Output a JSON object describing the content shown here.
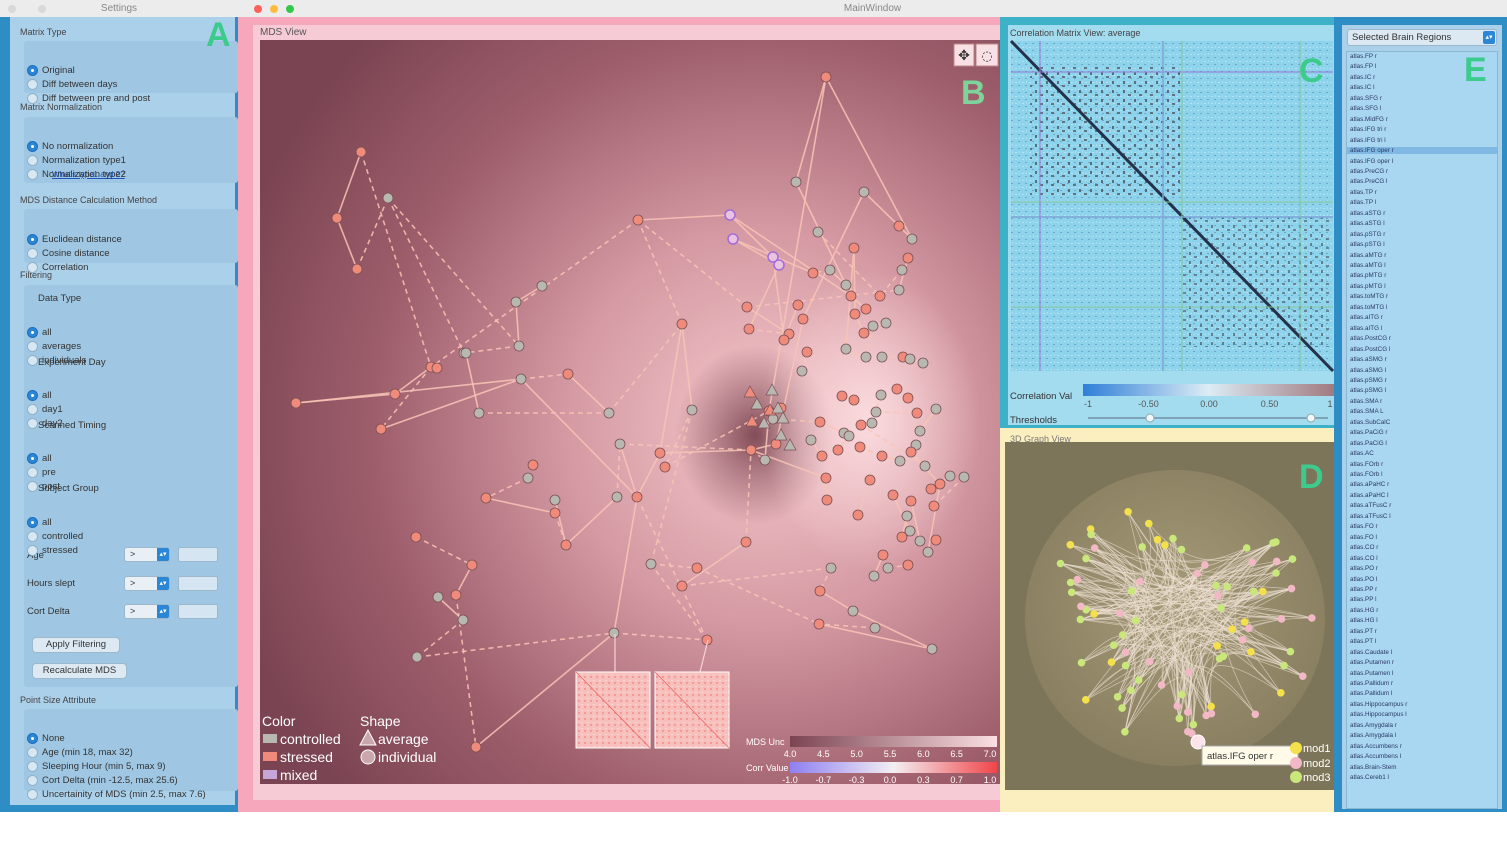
{
  "windows": {
    "settings_title": "Settings",
    "main_title": "MainWindow"
  },
  "panel_letters": {
    "a": "A",
    "b": "B",
    "c": "C",
    "d": "D",
    "e": "E"
  },
  "settings": {
    "matrix_type": {
      "header": "Matrix Type",
      "options": [
        "Original",
        "Diff between days",
        "Diff between pre and post"
      ],
      "selected": 0
    },
    "normalization": {
      "header": "Matrix Normalization",
      "options": [
        "No normalization",
        "Normalization type1",
        "Normalization type2"
      ],
      "selected": 0,
      "link": "What's type1 and 2?"
    },
    "distance": {
      "header": "MDS Distance Calculation Method",
      "options": [
        "Euclidean distance",
        "Cosine distance",
        "Correlation"
      ],
      "selected": 0
    },
    "filtering": {
      "header": "Filtering",
      "data_type": {
        "label": "Data Type",
        "options": [
          "all",
          "averages",
          "individuals"
        ],
        "selected": 0
      },
      "experiment_day": {
        "label": "Experiment Day",
        "options": [
          "all",
          "day1",
          "day2"
        ],
        "selected": 0
      },
      "scanned_timing": {
        "label": "Scanned Timing",
        "options": [
          "all",
          "pre",
          "post"
        ],
        "selected": 0
      },
      "subject_group": {
        "label": "Subject Group",
        "options": [
          "all",
          "controlled",
          "stressed"
        ],
        "selected": 0
      },
      "age": {
        "label": "Age",
        "operator": ">",
        "value": ""
      },
      "hours_slept": {
        "label": "Hours slept",
        "operator": ">",
        "value": ""
      },
      "cort_delta": {
        "label": "Cort Delta",
        "operator": ">",
        "value": ""
      }
    },
    "apply_button": "Apply Filtering",
    "recalc_button": "Recalculate MDS",
    "point_size": {
      "header": "Point Size Attribute",
      "options": [
        "None",
        "Age (min 18, max 32)",
        "Sleeping Hour (min 5, max 9)",
        "Cort Delta (min -12.5, max 25.6)",
        "Uncertainity of MDS (min 2.5, max 7.6)"
      ],
      "selected": 0
    }
  },
  "mds_view": {
    "title": "MDS View",
    "legend": {
      "color_title": "Color",
      "color_items": [
        {
          "label": "controlled",
          "color": "#b8b8b0"
        },
        {
          "label": "stressed",
          "color": "#f08a7a"
        },
        {
          "label": "mixed",
          "color": "#c4a6d8"
        }
      ],
      "shape_title": "Shape",
      "shape_items": [
        "average",
        "individual"
      ]
    },
    "uncertainty_scale": {
      "label": "MDS Unc",
      "ticks": [
        "4.0",
        "4.5",
        "5.0",
        "5.5",
        "6.0",
        "6.5",
        "7.0"
      ]
    },
    "corr_scale": {
      "label": "Corr Value",
      "ticks": [
        "-1.0",
        "-0.7",
        "-0.3",
        "0.0",
        "0.3",
        "0.7",
        "1.0"
      ]
    },
    "colors": {
      "controlled": "#b8b8b0",
      "stressed": "#f08a7a",
      "mixed": "#c4a6d8"
    }
  },
  "correlation_view": {
    "title": "Correlation Matrix View: average",
    "corr_label": "Correlation Val",
    "corr_ticks": [
      "-1",
      "-0.50",
      "0.00",
      "0.50",
      "1"
    ],
    "threshold_label": "Thresholds"
  },
  "graph_view": {
    "title": "3D Graph View",
    "tooltip": "atlas.IFG oper r",
    "modules": [
      {
        "label": "mod1",
        "color": "#f3e04a"
      },
      {
        "label": "mod2",
        "color": "#f2b8c6"
      },
      {
        "label": "mod3",
        "color": "#c9e77a"
      }
    ]
  },
  "regions": {
    "selector": "Selected Brain Regions",
    "selected_index": 9,
    "items": [
      "atlas.FP r",
      "atlas.FP l",
      "atlas.IC r",
      "atlas.IC l",
      "atlas.SFG r",
      "atlas.SFG l",
      "atlas.MidFG r",
      "atlas.IFG tri r",
      "atlas.IFG tri l",
      "atlas.IFG oper r",
      "atlas.IFG oper l",
      "atlas.PreCG r",
      "atlas.PreCG l",
      "atlas.TP r",
      "atlas.TP l",
      "atlas.aSTG r",
      "atlas.aSTG l",
      "atlas.pSTG r",
      "atlas.pSTG l",
      "atlas.aMTG r",
      "atlas.aMTG l",
      "atlas.pMTG r",
      "atlas.pMTG l",
      "atlas.toMTG r",
      "atlas.toMTG l",
      "atlas.aITG r",
      "atlas.aITG l",
      "atlas.PostCG r",
      "atlas.PostCG l",
      "atlas.aSMG r",
      "atlas.aSMG l",
      "atlas.pSMG r",
      "atlas.pSMG l",
      "atlas.SMA r",
      "atlas.SMA L",
      "atlas.SubCalC",
      "atlas.PaCiG r",
      "atlas.PaCiG l",
      "atlas.AC",
      "atlas.FOrb r",
      "atlas.FOrb l",
      "atlas.aPaHC r",
      "atlas.aPaHC l",
      "atlas.aTFusC r",
      "atlas.aTFusC l",
      "atlas.FO r",
      "atlas.FO l",
      "atlas.CO r",
      "atlas.CO l",
      "atlas.PO r",
      "atlas.PO l",
      "atlas.PP r",
      "atlas.PP l",
      "atlas.HG r",
      "atlas.HG l",
      "atlas.PT r",
      "atlas.PT l",
      "atlas.Caudate l",
      "atlas.Putamen r",
      "atlas.Putamen l",
      "atlas.Pallidum r",
      "atlas.Pallidum l",
      "atlas.Hippocampus r",
      "atlas.Hippocampus l",
      "atlas.Amygdala r",
      "atlas.Amygdala l",
      "atlas.Accumbens r",
      "atlas.Accumbens l",
      "atlas.Brain-Stem",
      "atlas.Cereb1 l"
    ]
  }
}
